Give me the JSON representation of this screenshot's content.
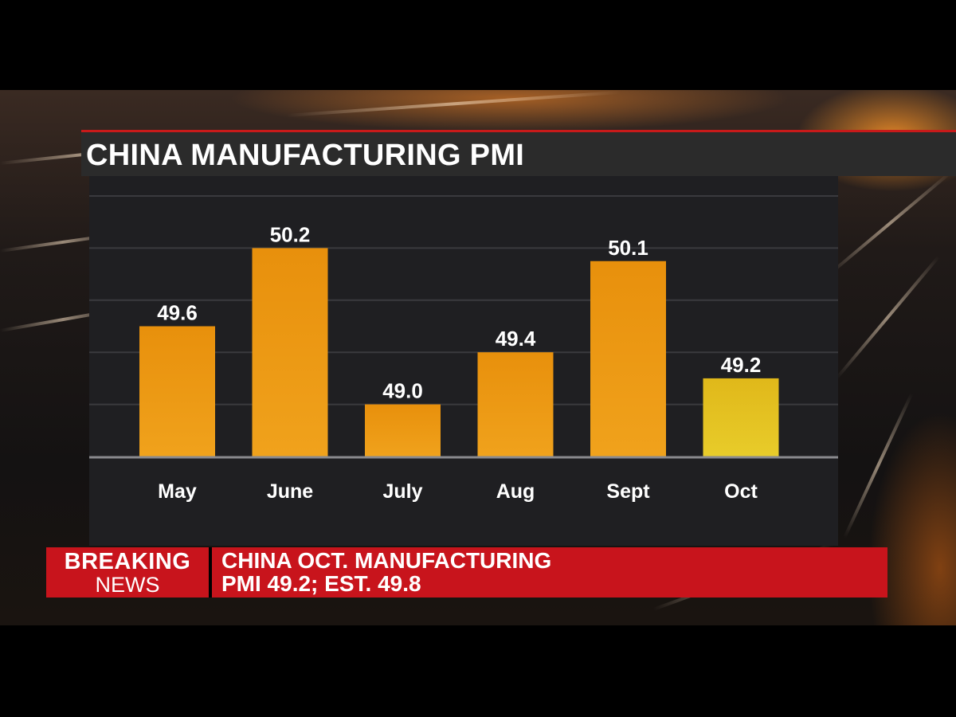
{
  "colors": {
    "bar_primary": "#e8900c",
    "bar_highlight": "#e3c21e",
    "ticker_red": "#c8141c",
    "title_bar": "#2b2b2b",
    "plot_bg": "#1f1f22"
  },
  "chart_data": {
    "type": "bar",
    "title": "CHINA MANUFACTURING PMI",
    "xlabel": "",
    "ylabel": "",
    "categories": [
      "May",
      "June",
      "July",
      "Aug",
      "Sept",
      "Oct"
    ],
    "values": [
      49.6,
      50.2,
      49.0,
      49.4,
      50.1,
      49.2
    ],
    "value_labels": [
      "49.6",
      "50.2",
      "49.0",
      "49.4",
      "50.1",
      "49.2"
    ],
    "highlight_category": "Oct",
    "ylim": [
      48.6,
      50.6
    ],
    "grid": true,
    "legend": "none"
  },
  "ticker": {
    "breaking": "BREAKING",
    "news": "NEWS",
    "headline_line1": "CHINA OCT. MANUFACTURING",
    "headline_line2": "PMI 49.2; EST. 49.8"
  }
}
